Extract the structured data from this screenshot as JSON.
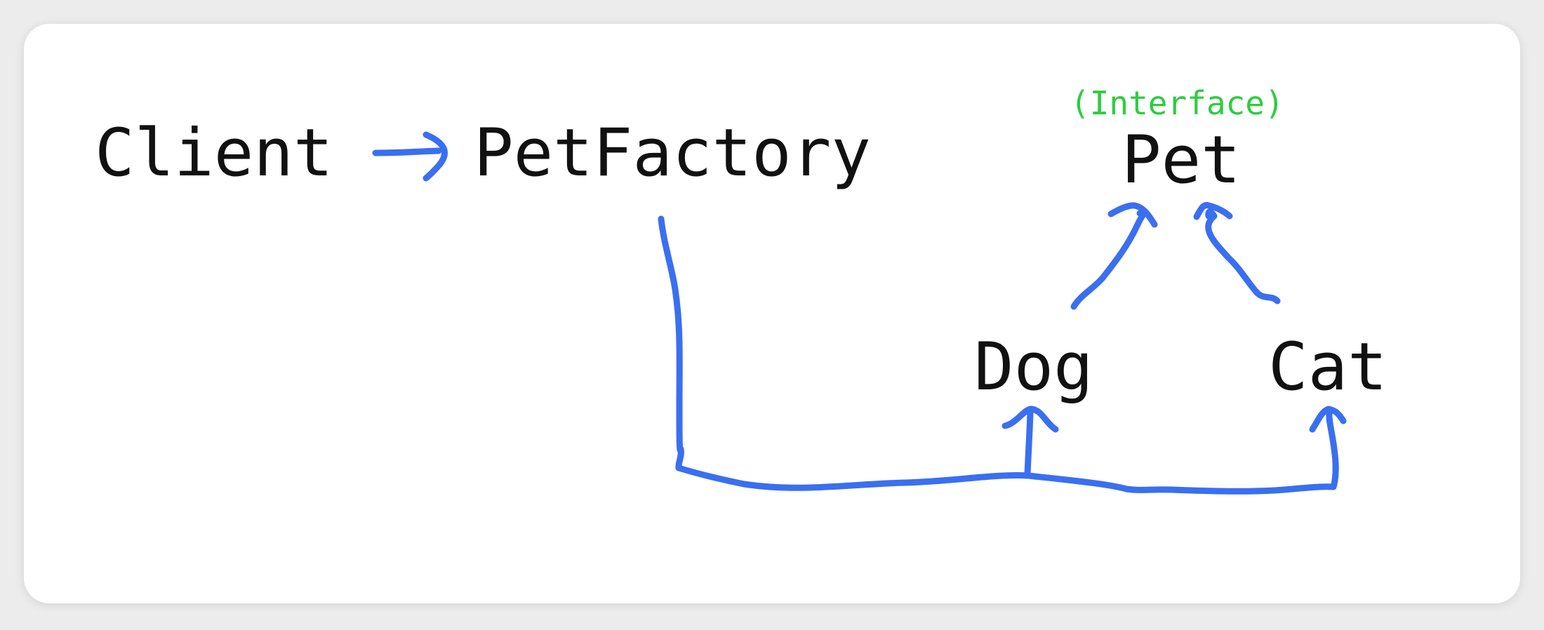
{
  "nodes": {
    "client": "Client",
    "factory": "PetFactory",
    "pet": "Pet",
    "pet_tag": "(Interface)",
    "dog": "Dog",
    "cat": "Cat"
  },
  "colors": {
    "arrow": "#3a6ff0",
    "interface_tag": "#2ecc40",
    "text": "#111111",
    "card_background": "#ffffff",
    "page_background": "#ececec"
  }
}
